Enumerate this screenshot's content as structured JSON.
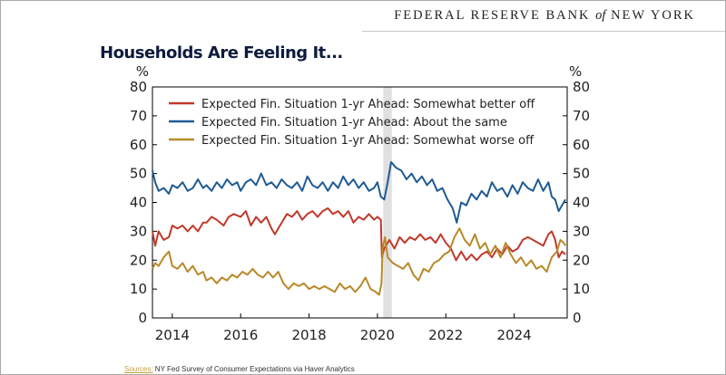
{
  "header": {
    "brand_main": "FEDERAL RESERVE BANK",
    "brand_of": "of",
    "brand_end": "NEW YORK"
  },
  "title": "Households Are Feeling It...",
  "source": {
    "label": "Sources:",
    "text": " NY Fed Survey of Consumer Expectations via Haver Analytics"
  },
  "colors": {
    "better": "#c0392b",
    "same": "#1f5b94",
    "worse": "#b8892a",
    "shade": "#e0e0e0"
  },
  "chart_data": {
    "type": "line",
    "title": "Households Are Feeling It...",
    "ylabel_left": "%",
    "ylabel_right": "%",
    "ylim": [
      0,
      80
    ],
    "yticks": [
      0,
      10,
      20,
      30,
      40,
      50,
      60,
      70,
      80
    ],
    "xlim": [
      2013.42,
      2025.55
    ],
    "xticks": [
      2014,
      2016,
      2018,
      2020,
      2022,
      2024
    ],
    "xtick_labels": [
      "2014",
      "2016",
      "2018",
      "2020",
      "2022",
      "2024"
    ],
    "shaded_period": [
      2020.17,
      2020.42
    ],
    "legend_position": "top",
    "series": [
      {
        "name": "Expected Fin. Situation 1-yr Ahead: Somewhat better off",
        "color_key": "better",
        "points": [
          [
            2013.42,
            30
          ],
          [
            2013.5,
            25
          ],
          [
            2013.6,
            30
          ],
          [
            2013.75,
            27
          ],
          [
            2013.9,
            28
          ],
          [
            2014.0,
            32
          ],
          [
            2014.15,
            31
          ],
          [
            2014.3,
            32
          ],
          [
            2014.45,
            30
          ],
          [
            2014.6,
            32
          ],
          [
            2014.75,
            30
          ],
          [
            2014.9,
            33
          ],
          [
            2015.0,
            33
          ],
          [
            2015.15,
            35
          ],
          [
            2015.3,
            34
          ],
          [
            2015.5,
            32
          ],
          [
            2015.65,
            35
          ],
          [
            2015.8,
            36
          ],
          [
            2016.0,
            35
          ],
          [
            2016.15,
            37
          ],
          [
            2016.3,
            32
          ],
          [
            2016.45,
            35
          ],
          [
            2016.6,
            33
          ],
          [
            2016.75,
            35
          ],
          [
            2016.9,
            31
          ],
          [
            2017.0,
            29
          ],
          [
            2017.15,
            32
          ],
          [
            2017.35,
            36
          ],
          [
            2017.5,
            35
          ],
          [
            2017.65,
            37
          ],
          [
            2017.8,
            34
          ],
          [
            2017.95,
            36
          ],
          [
            2018.1,
            37
          ],
          [
            2018.25,
            35
          ],
          [
            2018.4,
            37
          ],
          [
            2018.55,
            38
          ],
          [
            2018.7,
            36
          ],
          [
            2018.85,
            37
          ],
          [
            2019.0,
            35
          ],
          [
            2019.15,
            37
          ],
          [
            2019.3,
            33
          ],
          [
            2019.45,
            35
          ],
          [
            2019.6,
            34
          ],
          [
            2019.75,
            36
          ],
          [
            2019.9,
            34
          ],
          [
            2020.0,
            35
          ],
          [
            2020.1,
            34
          ],
          [
            2020.13,
            21
          ],
          [
            2020.2,
            24
          ],
          [
            2020.35,
            27
          ],
          [
            2020.5,
            24
          ],
          [
            2020.65,
            28
          ],
          [
            2020.8,
            26
          ],
          [
            2020.95,
            28
          ],
          [
            2021.1,
            27
          ],
          [
            2021.25,
            29
          ],
          [
            2021.4,
            27
          ],
          [
            2021.55,
            28
          ],
          [
            2021.7,
            26
          ],
          [
            2021.85,
            29
          ],
          [
            2022.0,
            26
          ],
          [
            2022.15,
            24
          ],
          [
            2022.3,
            20
          ],
          [
            2022.45,
            23
          ],
          [
            2022.6,
            20
          ],
          [
            2022.75,
            22
          ],
          [
            2022.9,
            20
          ],
          [
            2023.05,
            22
          ],
          [
            2023.2,
            23
          ],
          [
            2023.35,
            21
          ],
          [
            2023.5,
            24
          ],
          [
            2023.65,
            22
          ],
          [
            2023.8,
            25
          ],
          [
            2023.95,
            23
          ],
          [
            2024.1,
            24
          ],
          [
            2024.25,
            27
          ],
          [
            2024.4,
            28
          ],
          [
            2024.55,
            27
          ],
          [
            2024.7,
            26
          ],
          [
            2024.85,
            25
          ],
          [
            2025.0,
            29
          ],
          [
            2025.1,
            30
          ],
          [
            2025.2,
            27
          ],
          [
            2025.3,
            21
          ],
          [
            2025.4,
            23
          ],
          [
            2025.5,
            22
          ]
        ]
      },
      {
        "name": "Expected Fin. Situation 1-yr Ahead: About the same",
        "color_key": "same",
        "points": [
          [
            2013.42,
            51
          ],
          [
            2013.5,
            47
          ],
          [
            2013.6,
            44
          ],
          [
            2013.75,
            45
          ],
          [
            2013.9,
            43
          ],
          [
            2014.0,
            46
          ],
          [
            2014.15,
            45
          ],
          [
            2014.3,
            47
          ],
          [
            2014.45,
            44
          ],
          [
            2014.6,
            45
          ],
          [
            2014.75,
            48
          ],
          [
            2014.9,
            45
          ],
          [
            2015.0,
            46
          ],
          [
            2015.15,
            44
          ],
          [
            2015.3,
            47
          ],
          [
            2015.45,
            45
          ],
          [
            2015.6,
            48
          ],
          [
            2015.75,
            46
          ],
          [
            2015.9,
            47
          ],
          [
            2016.0,
            44
          ],
          [
            2016.15,
            47
          ],
          [
            2016.3,
            48
          ],
          [
            2016.45,
            46
          ],
          [
            2016.6,
            50
          ],
          [
            2016.75,
            46
          ],
          [
            2016.9,
            47
          ],
          [
            2017.05,
            45
          ],
          [
            2017.2,
            48
          ],
          [
            2017.35,
            46
          ],
          [
            2017.5,
            45
          ],
          [
            2017.65,
            47
          ],
          [
            2017.8,
            44
          ],
          [
            2017.95,
            49
          ],
          [
            2018.1,
            46
          ],
          [
            2018.25,
            45
          ],
          [
            2018.4,
            47
          ],
          [
            2018.55,
            44
          ],
          [
            2018.7,
            47
          ],
          [
            2018.85,
            45
          ],
          [
            2019.0,
            49
          ],
          [
            2019.15,
            46
          ],
          [
            2019.3,
            48
          ],
          [
            2019.45,
            45
          ],
          [
            2019.6,
            47
          ],
          [
            2019.75,
            44
          ],
          [
            2019.9,
            45
          ],
          [
            2020.0,
            47
          ],
          [
            2020.1,
            42
          ],
          [
            2020.2,
            41
          ],
          [
            2020.3,
            47
          ],
          [
            2020.4,
            54
          ],
          [
            2020.55,
            52
          ],
          [
            2020.7,
            51
          ],
          [
            2020.85,
            48
          ],
          [
            2021.0,
            50
          ],
          [
            2021.15,
            47
          ],
          [
            2021.3,
            49
          ],
          [
            2021.45,
            46
          ],
          [
            2021.6,
            48
          ],
          [
            2021.75,
            44
          ],
          [
            2021.9,
            45
          ],
          [
            2022.05,
            41
          ],
          [
            2022.2,
            38
          ],
          [
            2022.32,
            33
          ],
          [
            2022.45,
            40
          ],
          [
            2022.6,
            39
          ],
          [
            2022.75,
            43
          ],
          [
            2022.9,
            41
          ],
          [
            2023.05,
            44
          ],
          [
            2023.2,
            42
          ],
          [
            2023.35,
            47
          ],
          [
            2023.5,
            44
          ],
          [
            2023.65,
            45
          ],
          [
            2023.8,
            42
          ],
          [
            2023.95,
            46
          ],
          [
            2024.1,
            43
          ],
          [
            2024.25,
            47
          ],
          [
            2024.4,
            45
          ],
          [
            2024.55,
            44
          ],
          [
            2024.7,
            48
          ],
          [
            2024.85,
            44
          ],
          [
            2025.0,
            47
          ],
          [
            2025.1,
            42
          ],
          [
            2025.2,
            41
          ],
          [
            2025.3,
            37
          ],
          [
            2025.4,
            39
          ],
          [
            2025.5,
            41
          ]
        ]
      },
      {
        "name": "Expected Fin. Situation 1-yr Ahead: Somewhat worse off",
        "color_key": "worse",
        "points": [
          [
            2013.42,
            17
          ],
          [
            2013.5,
            19
          ],
          [
            2013.6,
            18
          ],
          [
            2013.75,
            21
          ],
          [
            2013.9,
            23
          ],
          [
            2014.0,
            18
          ],
          [
            2014.15,
            17
          ],
          [
            2014.3,
            19
          ],
          [
            2014.45,
            16
          ],
          [
            2014.6,
            18
          ],
          [
            2014.75,
            15
          ],
          [
            2014.9,
            16
          ],
          [
            2015.0,
            13
          ],
          [
            2015.15,
            14
          ],
          [
            2015.3,
            12
          ],
          [
            2015.45,
            14
          ],
          [
            2015.6,
            13
          ],
          [
            2015.75,
            15
          ],
          [
            2015.9,
            14
          ],
          [
            2016.05,
            16
          ],
          [
            2016.2,
            15
          ],
          [
            2016.35,
            17
          ],
          [
            2016.5,
            15
          ],
          [
            2016.65,
            14
          ],
          [
            2016.8,
            16
          ],
          [
            2016.95,
            14
          ],
          [
            2017.1,
            16
          ],
          [
            2017.25,
            12
          ],
          [
            2017.4,
            10
          ],
          [
            2017.55,
            12
          ],
          [
            2017.7,
            11
          ],
          [
            2017.85,
            12
          ],
          [
            2018.0,
            10
          ],
          [
            2018.15,
            11
          ],
          [
            2018.3,
            10
          ],
          [
            2018.45,
            11
          ],
          [
            2018.6,
            10
          ],
          [
            2018.75,
            9
          ],
          [
            2018.9,
            12
          ],
          [
            2019.05,
            10
          ],
          [
            2019.2,
            11
          ],
          [
            2019.35,
            9
          ],
          [
            2019.5,
            11
          ],
          [
            2019.65,
            14
          ],
          [
            2019.8,
            10
          ],
          [
            2019.95,
            9
          ],
          [
            2020.05,
            8
          ],
          [
            2020.12,
            12
          ],
          [
            2020.15,
            24
          ],
          [
            2020.22,
            28
          ],
          [
            2020.3,
            21
          ],
          [
            2020.45,
            19
          ],
          [
            2020.6,
            18
          ],
          [
            2020.75,
            17
          ],
          [
            2020.9,
            19
          ],
          [
            2021.05,
            15
          ],
          [
            2021.2,
            13
          ],
          [
            2021.35,
            17
          ],
          [
            2021.5,
            16
          ],
          [
            2021.65,
            19
          ],
          [
            2021.8,
            20
          ],
          [
            2021.95,
            22
          ],
          [
            2022.1,
            23
          ],
          [
            2022.25,
            28
          ],
          [
            2022.4,
            31
          ],
          [
            2022.55,
            27
          ],
          [
            2022.7,
            25
          ],
          [
            2022.85,
            29
          ],
          [
            2023.0,
            24
          ],
          [
            2023.15,
            26
          ],
          [
            2023.3,
            22
          ],
          [
            2023.45,
            25
          ],
          [
            2023.6,
            21
          ],
          [
            2023.75,
            26
          ],
          [
            2023.9,
            22
          ],
          [
            2024.05,
            19
          ],
          [
            2024.2,
            21
          ],
          [
            2024.35,
            18
          ],
          [
            2024.5,
            20
          ],
          [
            2024.65,
            17
          ],
          [
            2024.8,
            18
          ],
          [
            2024.95,
            16
          ],
          [
            2025.1,
            21
          ],
          [
            2025.25,
            23
          ],
          [
            2025.35,
            27
          ],
          [
            2025.45,
            26
          ],
          [
            2025.5,
            25
          ]
        ]
      }
    ]
  }
}
